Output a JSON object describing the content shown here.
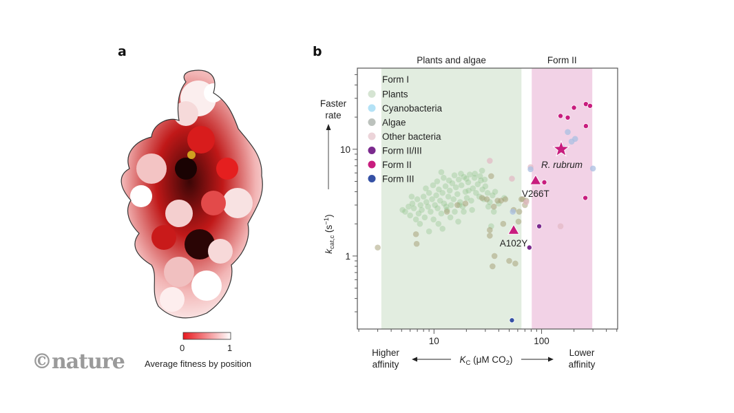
{
  "panel_a": {
    "letter": "a",
    "colorbar": {
      "min_label": "0",
      "max_label": "1",
      "title": "Average fitness by position",
      "color_low": "#e8191f",
      "color_high": "#ffffff"
    }
  },
  "panel_b": {
    "letter": "b"
  },
  "logo": "©nature",
  "chart_data": {
    "type": "scatter",
    "title": "",
    "xscale": "log",
    "yscale": "log",
    "xlim": [
      1.94,
      509
    ],
    "ylim": [
      0.207,
      57.5
    ],
    "xlabel": "K_C (μM CO2)",
    "xlabel_main": "K",
    "xlabel_sub": "C",
    "xlabel_rest": " (μM CO",
    "xlabel_sub2": "2",
    "xlabel_end": ")",
    "ylabel_main": "k",
    "ylabel_sub": "cat,c",
    "ylabel_rest": " (s",
    "ylabel_sup": "−1",
    "ylabel_end": ")",
    "x_ticks": [
      {
        "value": 10,
        "label": "10"
      },
      {
        "value": 100,
        "label": "100"
      }
    ],
    "y_ticks": [
      {
        "value": 1,
        "label": "1"
      },
      {
        "value": 10,
        "label": "10"
      }
    ],
    "annotations": {
      "top_left": "Faster",
      "top_left2": "rate",
      "x_left1": "Higher",
      "x_left2": "affinity",
      "x_right1": "Lower",
      "x_right2": "affinity"
    },
    "regions": [
      {
        "label": "Plants and algae",
        "x_range": [
          3.24,
          65
        ],
        "color": "#e2ede0"
      },
      {
        "label": "Form II",
        "x_range": [
          81,
          296
        ],
        "color": "#f2d2e6"
      }
    ],
    "legend": {
      "position": "top-left",
      "header": "Form I",
      "entries": [
        {
          "name": "Plants",
          "color": "#d5e4d2"
        },
        {
          "name": "Cyanobacteria",
          "color": "#b4e2f6"
        },
        {
          "name": "Algae",
          "color": "#bcc2bd"
        },
        {
          "name": "Other bacteria",
          "color": "#ecd4d9"
        },
        {
          "name": "Form II/III",
          "color": "#7b2a8e"
        },
        {
          "name": "Form II",
          "color": "#c81d7e"
        },
        {
          "name": "Form III",
          "color": "#3551a5"
        }
      ]
    },
    "series": [
      {
        "name": "Plants",
        "color": "#8cbf86",
        "opacity": 0.35,
        "points": [
          [
            5.1,
            2.7
          ],
          [
            5.4,
            2.6
          ],
          [
            5.8,
            2.9
          ],
          [
            6.0,
            2.4
          ],
          [
            6.3,
            3.1
          ],
          [
            6.5,
            2.8
          ],
          [
            6.8,
            2.2
          ],
          [
            7.0,
            3.4
          ],
          [
            7.2,
            2.5
          ],
          [
            7.5,
            3.0
          ],
          [
            7.7,
            2.7
          ],
          [
            8.0,
            3.6
          ],
          [
            8.2,
            2.3
          ],
          [
            8.5,
            3.2
          ],
          [
            8.8,
            2.9
          ],
          [
            9.0,
            3.9
          ],
          [
            9.3,
            2.6
          ],
          [
            9.6,
            3.4
          ],
          [
            9.9,
            2.2
          ],
          [
            10.2,
            3.0
          ],
          [
            10.5,
            3.7
          ],
          [
            10.8,
            2.8
          ],
          [
            11.1,
            4.2
          ],
          [
            11.4,
            3.3
          ],
          [
            11.7,
            2.5
          ],
          [
            12.0,
            3.9
          ],
          [
            12.4,
            3.1
          ],
          [
            12.8,
            4.5
          ],
          [
            13.2,
            2.7
          ],
          [
            13.6,
            3.6
          ],
          [
            14.0,
            4.1
          ],
          [
            14.4,
            3.0
          ],
          [
            14.8,
            4.8
          ],
          [
            15.2,
            3.4
          ],
          [
            15.6,
            2.6
          ],
          [
            16.0,
            4.4
          ],
          [
            16.5,
            3.8
          ],
          [
            17.0,
            5.2
          ],
          [
            17.5,
            3.2
          ],
          [
            18.0,
            4.6
          ],
          [
            18.5,
            2.9
          ],
          [
            19.0,
            5.5
          ],
          [
            19.6,
            4.0
          ],
          [
            20.2,
            3.5
          ],
          [
            20.8,
            4.9
          ],
          [
            21.5,
            5.8
          ],
          [
            22.2,
            3.3
          ],
          [
            23.0,
            4.3
          ],
          [
            23.8,
            5.4
          ],
          [
            24.6,
            3.9
          ],
          [
            25.5,
            4.7
          ],
          [
            26.4,
            3.6
          ],
          [
            27.3,
            5.1
          ],
          [
            28.2,
            4.2
          ],
          [
            29.0,
            3.4
          ],
          [
            30.0,
            4.5
          ],
          [
            31.5,
            3.9
          ],
          [
            33.0,
            3.2
          ],
          [
            35.0,
            3.7
          ],
          [
            37.0,
            4.0
          ],
          [
            12.3,
            5.4
          ],
          [
            13.8,
            5.1
          ],
          [
            15.5,
            5.7
          ],
          [
            17.8,
            5.9
          ],
          [
            20.0,
            5.3
          ],
          [
            9.8,
            4.6
          ],
          [
            8.4,
            4.3
          ],
          [
            11.0,
            2.0
          ],
          [
            14.2,
            2.3
          ],
          [
            16.8,
            2.1
          ],
          [
            18.9,
            2.6
          ],
          [
            22.6,
            2.7
          ],
          [
            7.4,
            2.0
          ],
          [
            6.2,
            3.6
          ],
          [
            24.0,
            5.9
          ],
          [
            26.8,
            5.6
          ],
          [
            29.6,
            5.2
          ],
          [
            10.7,
            5.0
          ],
          [
            13.0,
            2.9
          ],
          [
            17.2,
            3.0
          ],
          [
            21.0,
            4.1
          ],
          [
            32.0,
            2.9
          ],
          [
            36.0,
            2.6
          ],
          [
            40.0,
            3.1
          ],
          [
            45.0,
            3.5
          ],
          [
            12.0,
            1.8
          ],
          [
            9.0,
            1.7
          ],
          [
            34.0,
            1.9
          ],
          [
            28.0,
            6.3
          ],
          [
            11.7,
            6.1
          ]
        ]
      },
      {
        "name": "Algae",
        "color": "#a8a27a",
        "opacity": 0.55,
        "points": [
          [
            3.0,
            1.2
          ],
          [
            6.8,
            1.6
          ],
          [
            6.9,
            1.3
          ],
          [
            13.2,
            2.6
          ],
          [
            16.5,
            3.0
          ],
          [
            19.6,
            3.1
          ],
          [
            34.0,
            5.6
          ],
          [
            28.0,
            3.5
          ],
          [
            31.0,
            3.4
          ],
          [
            36.0,
            2.9
          ],
          [
            39.0,
            3.3
          ],
          [
            42.0,
            3.3
          ],
          [
            46.0,
            3.4
          ],
          [
            33.0,
            1.75
          ],
          [
            33.0,
            1.55
          ],
          [
            36.5,
            1.0
          ],
          [
            35.0,
            0.8
          ],
          [
            44.0,
            2.0
          ],
          [
            55.0,
            2.7
          ],
          [
            65.0,
            3.4
          ],
          [
            67.0,
            3.4
          ],
          [
            57.0,
            0.85
          ],
          [
            50.0,
            0.9
          ],
          [
            61.0,
            2.1
          ],
          [
            72.0,
            3.3
          ],
          [
            70.0,
            3.0
          ],
          [
            62.0,
            2.6
          ]
        ]
      },
      {
        "name": "Other bacteria",
        "color": "#e3b8c3",
        "opacity": 0.7,
        "points": [
          [
            33.0,
            7.8
          ],
          [
            53.0,
            5.3
          ],
          [
            79.0,
            6.8
          ],
          [
            150.0,
            1.9
          ],
          [
            72.0,
            3.2
          ]
        ]
      },
      {
        "name": "Cyanobacteria",
        "color": "#a9bfe2",
        "opacity": 0.75,
        "points": [
          [
            54.0,
            2.6
          ],
          [
            79.0,
            6.5
          ],
          [
            155.0,
            10.4
          ],
          [
            175.0,
            14.5
          ],
          [
            205.0,
            12.5
          ],
          [
            190.0,
            11.8
          ],
          [
            300.0,
            6.6
          ]
        ]
      },
      {
        "name": "Form II/III",
        "color": "#7b2a8e",
        "opacity": 1,
        "points": [
          [
            95.0,
            1.9
          ],
          [
            77.0,
            1.2
          ]
        ]
      },
      {
        "name": "Form II",
        "color": "#c81d7e",
        "opacity": 1,
        "points": [
          [
            150.0,
            20.5
          ],
          [
            175.0,
            19.8
          ],
          [
            200.0,
            24.5
          ],
          [
            258.0,
            26.5
          ],
          [
            282.0,
            25.5
          ],
          [
            258.0,
            16.5
          ],
          [
            106.0,
            4.9
          ],
          [
            255.0,
            3.5
          ]
        ]
      },
      {
        "name": "Form III",
        "color": "#3551a5",
        "opacity": 1,
        "points": [
          [
            53.0,
            0.25
          ]
        ]
      }
    ],
    "highlights": [
      {
        "label": "R. rubrum",
        "marker": "star",
        "x": 152,
        "y": 10.0,
        "color": "#c81d7e",
        "italic": true
      },
      {
        "label": "V266T",
        "marker": "triangle",
        "x": 88,
        "y": 5.1,
        "color": "#c81d7e"
      },
      {
        "label": "A102Y",
        "marker": "triangle",
        "x": 55,
        "y": 1.75,
        "color": "#c81d7e"
      }
    ]
  }
}
